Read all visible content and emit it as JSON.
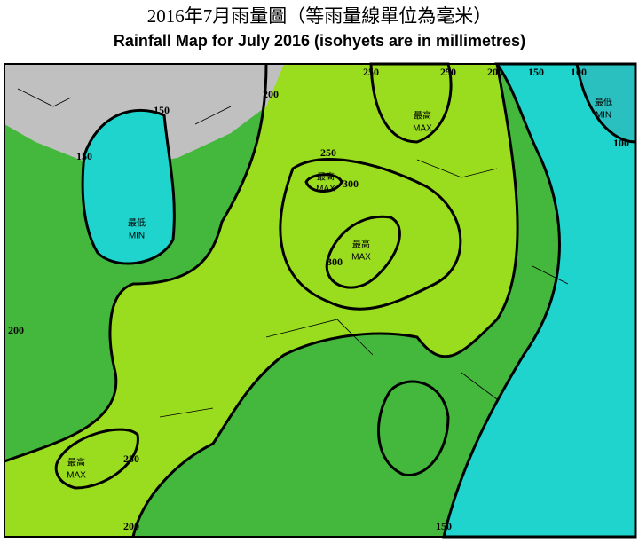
{
  "header": {
    "title_zh": "2016年7月雨量圖（等雨量線單位為毫米）",
    "title_en": "Rainfall Map for July 2016 (isohyets are in millimetres)"
  },
  "isohyet_labels": [
    250,
    250,
    200,
    150,
    100,
    150,
    200,
    150,
    250,
    300,
    300,
    100,
    200,
    250,
    200,
    150
  ],
  "extremes": [
    {
      "zh": "最高",
      "en": "MAX"
    },
    {
      "zh": "最高",
      "en": "MAX"
    },
    {
      "zh": "最高",
      "en": "MAX"
    },
    {
      "zh": "最低",
      "en": "MIN"
    },
    {
      "zh": "最低",
      "en": "MIN"
    },
    {
      "zh": "最高",
      "en": "MAX"
    }
  ]
}
